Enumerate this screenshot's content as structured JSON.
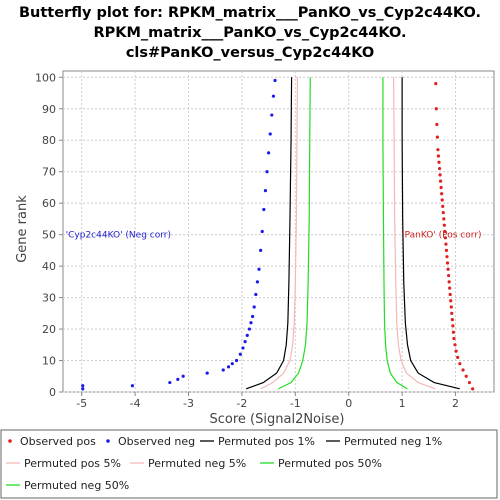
{
  "chart_data": {
    "type": "scatter",
    "title_lines": [
      "Butterfly plot for: RPKM_matrix___PanKO_vs_Cyp2c44KO.",
      "RPKM_matrix___PanKO_vs_Cyp2c44KO.",
      "cls#PanKO_versus_Cyp2c44KO"
    ],
    "xlabel": "Score (Signal2Noise)",
    "ylabel": "Gene rank",
    "xlim": [
      -5.35,
      2.72
    ],
    "ylim": [
      0,
      102
    ],
    "x_ticks": [
      -5,
      -4,
      -3,
      -2,
      -1,
      0,
      1,
      2
    ],
    "y_ticks": [
      0,
      10,
      20,
      30,
      40,
      50,
      60,
      70,
      80,
      90,
      100
    ],
    "grid": true,
    "legend_position": "bottom",
    "annotations": {
      "neg": {
        "text": "'Cyp2c44KO' (Neg corr)",
        "x": -5.3,
        "y": 50,
        "color": "#2222cc"
      },
      "pos": {
        "text": "'PanKO' (Pos corr)",
        "x": 1.0,
        "y": 50,
        "color": "#cc2222"
      }
    },
    "series": [
      {
        "name": "Observed pos",
        "kind": "points",
        "color": "#e02020",
        "x": [
          2.32,
          2.26,
          2.2,
          2.14,
          2.08,
          2.04,
          2.01,
          1.99,
          1.97,
          1.96,
          1.95,
          1.94,
          1.93,
          1.92,
          1.91,
          1.9,
          1.89,
          1.88,
          1.87,
          1.86,
          1.85,
          1.84,
          1.83,
          1.82,
          1.81,
          1.8,
          1.79,
          1.78,
          1.77,
          1.76,
          1.75,
          1.74,
          1.73,
          1.72,
          1.71,
          1.7,
          1.69,
          1.68,
          1.67,
          1.66,
          1.65,
          1.64,
          1.63
        ],
        "y": [
          1,
          3,
          5,
          7,
          9,
          11,
          13,
          15,
          17,
          19,
          21,
          23,
          25,
          27,
          29,
          31,
          33,
          35,
          37,
          39,
          41,
          43,
          45,
          47,
          49,
          51,
          53,
          55,
          57,
          59,
          61,
          63,
          65,
          67,
          69,
          71,
          73,
          75,
          77,
          81,
          85,
          90,
          98
        ]
      },
      {
        "name": "Observed neg",
        "kind": "points",
        "color": "#1a1aee",
        "x": [
          -4.98,
          -4.98,
          -4.05,
          -3.35,
          -3.2,
          -3.1,
          -2.65,
          -2.35,
          -2.25,
          -2.18,
          -2.1,
          -2.03,
          -1.98,
          -1.94,
          -1.9,
          -1.86,
          -1.83,
          -1.8,
          -1.77,
          -1.74,
          -1.71,
          -1.68,
          -1.65,
          -1.62,
          -1.59,
          -1.56,
          -1.53,
          -1.5,
          -1.47,
          -1.44,
          -1.41,
          -1.38
        ],
        "y": [
          1,
          2,
          2,
          3,
          4,
          5,
          6,
          7,
          8,
          9,
          10,
          12,
          14,
          16,
          18,
          20,
          22,
          24,
          27,
          31,
          35,
          39,
          45,
          51,
          58,
          64,
          70,
          76,
          82,
          88,
          94,
          99
        ]
      },
      {
        "name": "Permuted pos 1%",
        "kind": "line",
        "color": "#000000",
        "x": [
          2.08,
          1.6,
          1.3,
          1.16,
          1.1,
          1.06,
          1.03,
          1.01,
          1.0,
          1.0
        ],
        "y": [
          1,
          3,
          6,
          10,
          15,
          22,
          35,
          55,
          80,
          100
        ]
      },
      {
        "name": "Permuted neg 1%",
        "kind": "line",
        "color": "#000000",
        "x": [
          -1.92,
          -1.6,
          -1.35,
          -1.22,
          -1.17,
          -1.14,
          -1.12,
          -1.1,
          -1.08,
          -1.07
        ],
        "y": [
          1,
          3,
          6,
          10,
          15,
          22,
          35,
          55,
          80,
          100
        ]
      },
      {
        "name": "Permuted pos 5%",
        "kind": "line",
        "color": "#f4b8b8",
        "x": [
          1.62,
          1.3,
          1.08,
          0.98,
          0.93,
          0.9,
          0.88,
          0.86,
          0.85,
          0.84
        ],
        "y": [
          1,
          3,
          6,
          10,
          15,
          22,
          35,
          55,
          80,
          100
        ]
      },
      {
        "name": "Permuted neg 5%",
        "kind": "line",
        "color": "#f4b8b8",
        "x": [
          -1.65,
          -1.42,
          -1.22,
          -1.1,
          -1.05,
          -1.02,
          -1.0,
          -0.98,
          -0.97,
          -0.96
        ],
        "y": [
          1,
          3,
          6,
          10,
          15,
          22,
          35,
          55,
          80,
          100
        ]
      },
      {
        "name": "Permuted pos 50%",
        "kind": "line",
        "color": "#22dd22",
        "x": [
          1.1,
          0.9,
          0.78,
          0.72,
          0.69,
          0.67,
          0.66,
          0.65,
          0.64,
          0.64
        ],
        "y": [
          1,
          3,
          6,
          10,
          15,
          22,
          35,
          55,
          80,
          100
        ]
      },
      {
        "name": "Permuted neg 50%",
        "kind": "line",
        "color": "#22dd22",
        "x": [
          -1.32,
          -1.08,
          -0.94,
          -0.86,
          -0.81,
          -0.78,
          -0.76,
          -0.74,
          -0.73,
          -0.72
        ],
        "y": [
          1,
          3,
          6,
          10,
          15,
          22,
          35,
          55,
          80,
          100
        ]
      }
    ]
  }
}
